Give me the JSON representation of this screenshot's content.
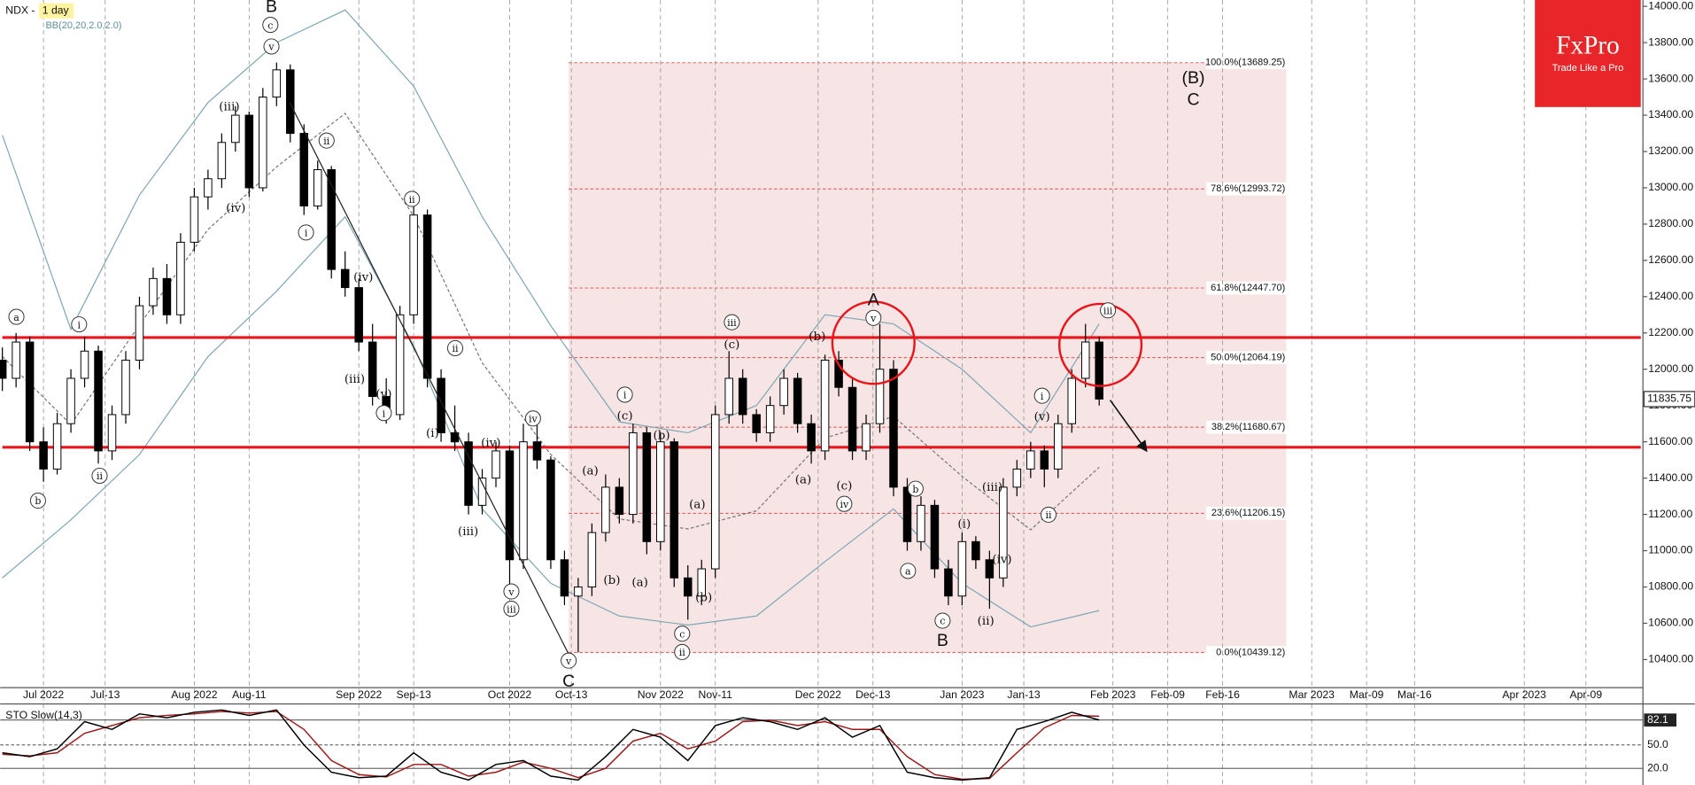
{
  "chart_data": {
    "type": "candlestick",
    "title": "NDX -",
    "timeframe": "1 day",
    "up_color": "#ffffff",
    "down_color": "#000000",
    "x": [
      0,
      2,
      4,
      6,
      8,
      10,
      12,
      14,
      16,
      18,
      20,
      22,
      24,
      26,
      28,
      30,
      32,
      34,
      36,
      38,
      40,
      42,
      44,
      46,
      48,
      50,
      52,
      54,
      56,
      58,
      60,
      62,
      64,
      66,
      68,
      70,
      72,
      74,
      76,
      78,
      80,
      82,
      84,
      86,
      88,
      90,
      92,
      94,
      96,
      98,
      100,
      102,
      104,
      106,
      108,
      110,
      112,
      114,
      116,
      118,
      120,
      122,
      124,
      126,
      128,
      130,
      132,
      134,
      136,
      138,
      140,
      142,
      144,
      146,
      148,
      150,
      152,
      154,
      156,
      158,
      160
    ],
    "ohlc": [
      [
        12050,
        12120,
        11880,
        11950
      ],
      [
        11950,
        12200,
        11900,
        12150
      ],
      [
        12150,
        12180,
        11550,
        11600
      ],
      [
        11600,
        11680,
        11380,
        11450
      ],
      [
        11450,
        11760,
        11420,
        11700
      ],
      [
        11700,
        12000,
        11650,
        11950
      ],
      [
        11950,
        12180,
        11900,
        12100
      ],
      [
        12100,
        12130,
        11480,
        11550
      ],
      [
        11550,
        11800,
        11500,
        11750
      ],
      [
        11750,
        12100,
        11700,
        12050
      ],
      [
        12050,
        12400,
        12000,
        12350
      ],
      [
        12350,
        12560,
        12300,
        12500
      ],
      [
        12500,
        12580,
        12250,
        12300
      ],
      [
        12300,
        12750,
        12250,
        12700
      ],
      [
        12700,
        13000,
        12650,
        12950
      ],
      [
        12950,
        13100,
        12880,
        13050
      ],
      [
        13050,
        13300,
        13000,
        13250
      ],
      [
        13250,
        13450,
        13200,
        13400
      ],
      [
        13400,
        13420,
        12950,
        13000
      ],
      [
        13000,
        13550,
        12980,
        13500
      ],
      [
        13500,
        13690,
        13450,
        13650
      ],
      [
        13650,
        13680,
        13250,
        13300
      ],
      [
        13300,
        13350,
        12850,
        12900
      ],
      [
        12900,
        13150,
        12880,
        13100
      ],
      [
        13100,
        13120,
        12500,
        12550
      ],
      [
        12550,
        12650,
        12400,
        12450
      ],
      [
        12450,
        12500,
        12100,
        12150
      ],
      [
        12150,
        12250,
        11800,
        11850
      ],
      [
        11850,
        11950,
        11700,
        11750
      ],
      [
        11750,
        12350,
        11720,
        12300
      ],
      [
        12300,
        12930,
        12250,
        12850
      ],
      [
        12850,
        12880,
        11900,
        11950
      ],
      [
        11950,
        12000,
        11600,
        11650
      ],
      [
        11650,
        11800,
        11550,
        11600
      ],
      [
        11600,
        11650,
        11200,
        11250
      ],
      [
        11250,
        11450,
        11200,
        11400
      ],
      [
        11400,
        11600,
        11350,
        11550
      ],
      [
        11550,
        11580,
        10780,
        10950
      ],
      [
        10950,
        11700,
        10900,
        11600
      ],
      [
        11600,
        11700,
        11450,
        11500
      ],
      [
        11500,
        11520,
        10900,
        10950
      ],
      [
        10950,
        11000,
        10700,
        10750
      ],
      [
        10750,
        10850,
        10440,
        10800
      ],
      [
        10800,
        11150,
        10750,
        11100
      ],
      [
        11100,
        11420,
        11050,
        11350
      ],
      [
        11350,
        11400,
        11150,
        11200
      ],
      [
        11200,
        11700,
        11150,
        11650
      ],
      [
        11650,
        11680,
        10980,
        11050
      ],
      [
        11050,
        11650,
        11000,
        11600
      ],
      [
        11600,
        11620,
        10800,
        10850
      ],
      [
        10850,
        10920,
        10620,
        10750
      ],
      [
        10750,
        10950,
        10700,
        10900
      ],
      [
        10900,
        11800,
        10850,
        11750
      ],
      [
        11750,
        12100,
        11700,
        11950
      ],
      [
        11950,
        12000,
        11700,
        11750
      ],
      [
        11750,
        11780,
        11600,
        11650
      ],
      [
        11650,
        11850,
        11600,
        11800
      ],
      [
        11800,
        12000,
        11750,
        11950
      ],
      [
        11950,
        11980,
        11650,
        11700
      ],
      [
        11700,
        11750,
        11480,
        11550
      ],
      [
        11550,
        12080,
        11500,
        12050
      ],
      [
        12050,
        12100,
        11850,
        11900
      ],
      [
        11900,
        11950,
        11500,
        11550
      ],
      [
        11550,
        11750,
        11500,
        11700
      ],
      [
        11700,
        12250,
        11650,
        12000
      ],
      [
        12000,
        12050,
        11300,
        11350
      ],
      [
        11350,
        11400,
        11000,
        11050
      ],
      [
        11050,
        11300,
        11000,
        11250
      ],
      [
        11250,
        11280,
        10850,
        10900
      ],
      [
        10900,
        10950,
        10700,
        10750
      ],
      [
        10750,
        11100,
        10700,
        11050
      ],
      [
        11050,
        11080,
        10900,
        10950
      ],
      [
        10950,
        11000,
        10680,
        10850
      ],
      [
        10850,
        11400,
        10800,
        11350
      ],
      [
        11350,
        11500,
        11300,
        11450
      ],
      [
        11450,
        11600,
        11400,
        11550
      ],
      [
        11550,
        11580,
        11350,
        11450
      ],
      [
        11450,
        11750,
        11400,
        11700
      ],
      [
        11700,
        12000,
        11650,
        11950
      ],
      [
        11950,
        12250,
        11900,
        12150
      ],
      [
        12150,
        12180,
        11800,
        11835.75
      ]
    ],
    "last_price": 11835.75,
    "bollinger": {
      "label": "BB(20,20,2.0,2.0)",
      "color": "#7fa7b5",
      "x": [
        0,
        10,
        20,
        30,
        40,
        50,
        60,
        70,
        80,
        90,
        100,
        110,
        120,
        130,
        140,
        150,
        160
      ],
      "upper": [
        13290,
        12220,
        12960,
        13470,
        13800,
        13980,
        13560,
        12840,
        12240,
        11710,
        11650,
        11800,
        12300,
        12250,
        12000,
        11650,
        12250
      ],
      "middle": [
        12070,
        11695,
        12245,
        12770,
        13115,
        13410,
        12845,
        12035,
        11530,
        11175,
        11120,
        11220,
        11620,
        11740,
        11410,
        11115,
        11460
      ],
      "lower": [
        10850,
        11170,
        11530,
        12070,
        12430,
        12840,
        12130,
        11230,
        10820,
        10640,
        10590,
        10640,
        10940,
        11230,
        10820,
        10580,
        10670
      ]
    },
    "fib_levels": [
      {
        "value": 13689.25,
        "label": "100.0%(13689.25)"
      },
      {
        "value": 12993.72,
        "label": "78.6%(12993.72)"
      },
      {
        "value": 12447.7,
        "label": "61.8%(12447.70)"
      },
      {
        "value": 12064.19,
        "label": "50.0%(12064.19)"
      },
      {
        "value": 11680.67,
        "label": "38.2%(11680.67)"
      },
      {
        "value": 11206.15,
        "label": "23.6%(11206.15)"
      },
      {
        "value": 10439.12,
        "label": "0.0%(10439.12)"
      }
    ],
    "levels": [
      12175,
      11570
    ],
    "level_color": "#e8161b",
    "xlim": [
      0,
      239
    ],
    "ylim": [
      10245,
      14035
    ],
    "yticks": [
      {
        "value": 10400,
        "label": "10400.00"
      },
      {
        "value": 10600,
        "label": "10600.00"
      },
      {
        "value": 10800,
        "label": "10800.00"
      },
      {
        "value": 11000,
        "label": "11000.00"
      },
      {
        "value": 11200,
        "label": "11200.00"
      },
      {
        "value": 11400,
        "label": "11400.00"
      },
      {
        "value": 11600,
        "label": "11600.00"
      },
      {
        "value": 11800,
        "label": "11800.00"
      },
      {
        "value": 12000,
        "label": "12000.00"
      },
      {
        "value": 12200,
        "label": "12200.00"
      },
      {
        "value": 12400,
        "label": "12400.00"
      },
      {
        "value": 12600,
        "label": "12600.00"
      },
      {
        "value": 12800,
        "label": "12800.00"
      },
      {
        "value": 13000,
        "label": "13000.00"
      },
      {
        "value": 13200,
        "label": "13200.00"
      },
      {
        "value": 13400,
        "label": "13400.00"
      },
      {
        "value": 13600,
        "label": "13600.00"
      },
      {
        "value": 13800,
        "label": "13800.00"
      },
      {
        "value": 14000,
        "label": "14000.00"
      }
    ],
    "xticks": [
      {
        "value": 6,
        "label": "Jul 2022"
      },
      {
        "value": 15,
        "label": "Jul-13"
      },
      {
        "value": 28,
        "label": "Aug 2022"
      },
      {
        "value": 36,
        "label": "Aug-11"
      },
      {
        "value": 52,
        "label": "Sep 2022"
      },
      {
        "value": 60,
        "label": "Sep-13"
      },
      {
        "value": 74,
        "label": "Oct 2022"
      },
      {
        "value": 83,
        "label": "Oct-13"
      },
      {
        "value": 96,
        "label": "Nov 2022"
      },
      {
        "value": 104,
        "label": "Nov-11"
      },
      {
        "value": 119,
        "label": "Dec 2022"
      },
      {
        "value": 127,
        "label": "Dec-13"
      },
      {
        "value": 140,
        "label": "Jan 2023"
      },
      {
        "value": 149,
        "label": "Jan-13"
      },
      {
        "value": 162,
        "label": "Feb 2023"
      },
      {
        "value": 170,
        "label": "Feb-09"
      },
      {
        "value": 178,
        "label": "Feb-16"
      },
      {
        "value": 191,
        "label": "Mar 2023"
      },
      {
        "value": 199,
        "label": "Mar-09"
      },
      {
        "value": 206,
        "label": "Mar-16"
      },
      {
        "value": 222,
        "label": "Apr 2023"
      },
      {
        "value": 231,
        "label": "Apr-09"
      }
    ],
    "stochastic": {
      "label": "STO Slow(14,3)",
      "x": [
        0,
        4,
        8,
        12,
        16,
        20,
        24,
        28,
        32,
        36,
        40,
        44,
        48,
        52,
        56,
        60,
        64,
        68,
        72,
        76,
        80,
        84,
        88,
        92,
        96,
        100,
        104,
        108,
        112,
        116,
        120,
        124,
        128,
        132,
        136,
        140,
        144,
        148,
        152,
        156,
        160
      ],
      "k": [
        40,
        35,
        45,
        80,
        70,
        90,
        85,
        92,
        95,
        88,
        95,
        50,
        15,
        8,
        10,
        40,
        15,
        5,
        25,
        30,
        10,
        5,
        35,
        70,
        60,
        30,
        75,
        85,
        80,
        70,
        85,
        60,
        75,
        15,
        8,
        5,
        8,
        70,
        80,
        92,
        82.1
      ],
      "d": [
        38,
        36,
        40,
        65,
        75,
        85,
        88,
        90,
        93,
        91,
        93,
        70,
        30,
        12,
        9,
        25,
        25,
        10,
        15,
        28,
        20,
        8,
        20,
        55,
        65,
        45,
        55,
        80,
        82,
        75,
        80,
        70,
        70,
        35,
        12,
        6,
        7,
        40,
        72,
        88,
        87
      ],
      "k_color": "#000000",
      "d_color": "#a01818",
      "ylim": [
        0,
        100
      ],
      "yticks": [
        82.1,
        {
          "value": 50,
          "label": "50.0"
        },
        {
          "value": 20,
          "label": "20.0"
        }
      ]
    },
    "annotations": [
      "a",
      "b",
      "i",
      "ii",
      "(iii)",
      "(iv)",
      "c",
      "v",
      "B",
      "ii",
      "i",
      "(iv)",
      "(iii)",
      "(v)",
      "i",
      "(i)",
      "ii",
      "ii",
      "(iv)",
      "(iii)",
      "iv",
      "v",
      "iii",
      "v",
      "C",
      "(a)",
      "(b)",
      "(c)",
      "i",
      "(a)",
      "(b)",
      "(a)",
      "(b)",
      "c",
      "ii",
      "iii",
      "(c)",
      "(b)",
      "(a)",
      "A",
      "v",
      "(c)",
      "iv",
      "b",
      "a",
      "c",
      "B",
      "(i)",
      "(ii)",
      "(iv)",
      "(iii)",
      "i",
      "(v)",
      "ii",
      "iii",
      "(B)",
      "C"
    ],
    "logo": {
      "name": "FxPro",
      "tagline": "Trade Like a Pro"
    }
  }
}
